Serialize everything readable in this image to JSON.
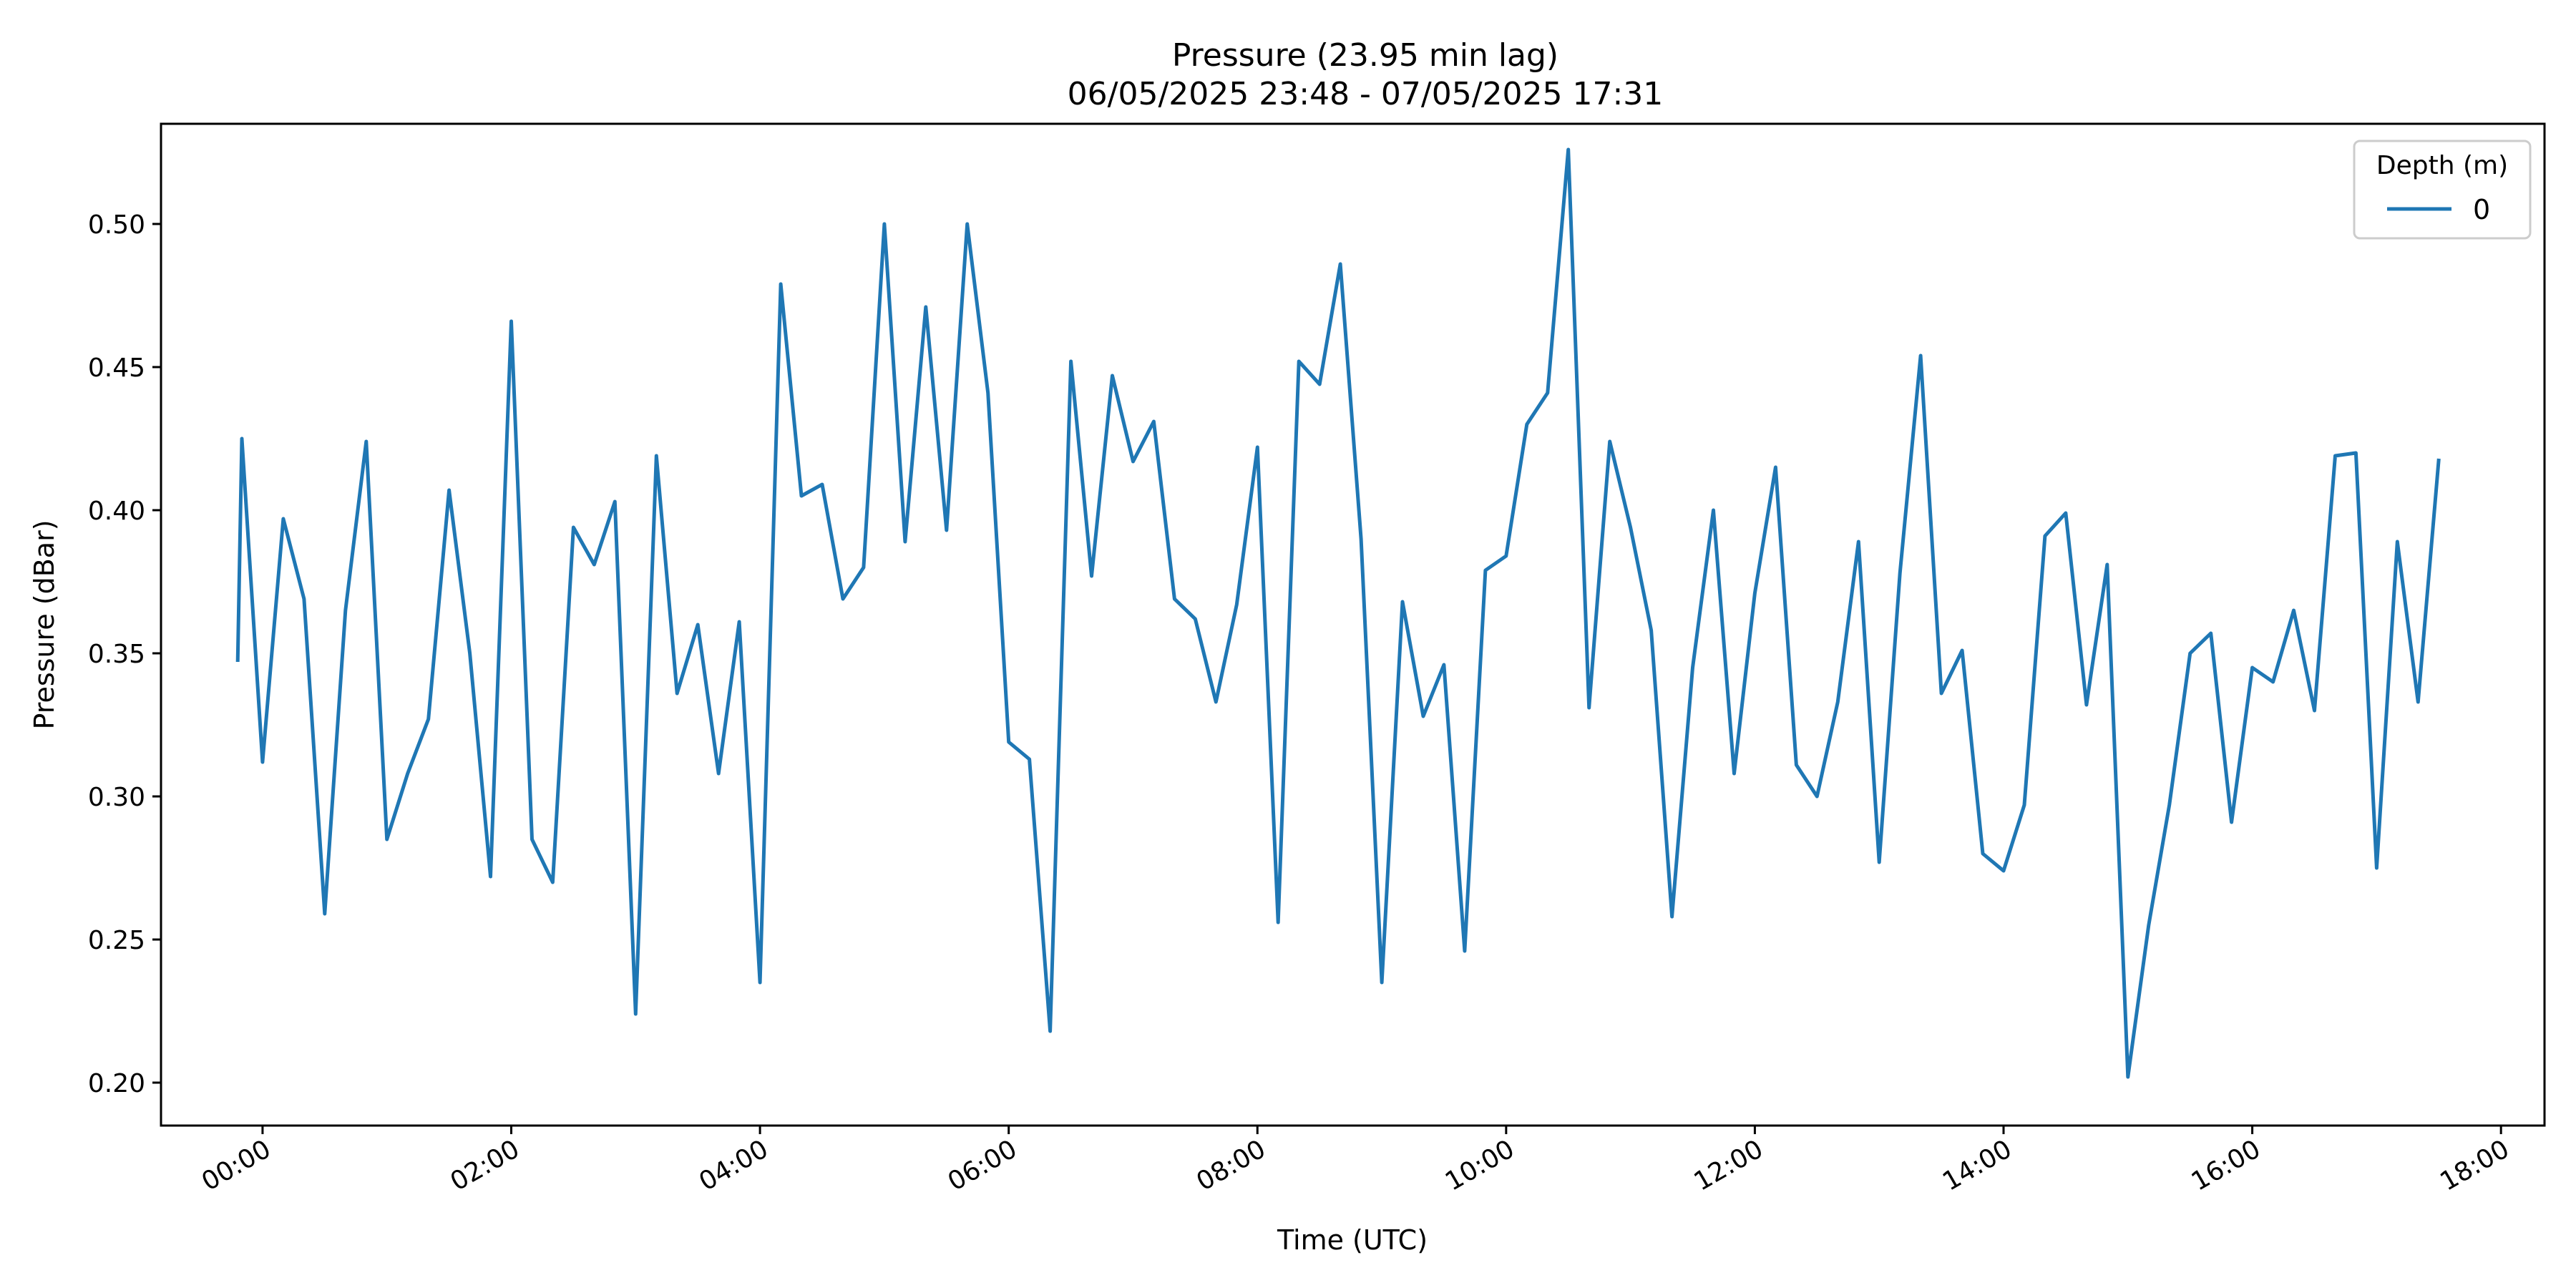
{
  "chart_data": {
    "type": "line",
    "title": "Pressure (23.95 min lag)",
    "subtitle": "06/05/2025 23:48 - 07/05/2025 17:31",
    "xlabel": "Time (UTC)",
    "ylabel": "Pressure (dBar)",
    "x_ticks": [
      "00:00",
      "02:00",
      "04:00",
      "06:00",
      "08:00",
      "10:00",
      "12:00",
      "14:00",
      "16:00",
      "18:00"
    ],
    "y_ticks": [
      "0.20",
      "0.25",
      "0.30",
      "0.35",
      "0.40",
      "0.45",
      "0.50"
    ],
    "xlim": [
      "06/05/2025 23:11",
      "07/05/2025 18:21"
    ],
    "ylim": [
      0.185,
      0.535
    ],
    "grid": false,
    "legend": {
      "title": "Depth (m)",
      "placement": "top-right"
    },
    "colors": {
      "series": "#1f77b4",
      "axes": "#000000"
    },
    "series": [
      {
        "name": "0",
        "x": [
          "23:48",
          "23:50",
          "24:00",
          "24:10",
          "24:20",
          "24:30",
          "24:40",
          "24:50",
          "25:00",
          "25:10",
          "25:20",
          "25:30",
          "25:40",
          "25:50",
          "26:00",
          "26:10",
          "26:20",
          "26:30",
          "26:40",
          "26:50",
          "27:00",
          "27:10",
          "27:20",
          "27:30",
          "27:40",
          "27:50",
          "28:00",
          "28:10",
          "28:20",
          "28:30",
          "28:40",
          "28:50",
          "29:00",
          "29:10",
          "29:20",
          "29:30",
          "29:40",
          "29:50",
          "30:00",
          "30:10",
          "30:20",
          "30:30",
          "30:40",
          "30:50",
          "31:00",
          "31:10",
          "31:20",
          "31:30",
          "31:40",
          "31:50",
          "32:00",
          "32:10",
          "32:20",
          "32:30",
          "32:40",
          "32:50",
          "33:00",
          "33:10",
          "33:20",
          "33:30",
          "33:40",
          "33:50",
          "34:00",
          "34:10",
          "34:20",
          "34:30",
          "34:40",
          "34:50",
          "35:00",
          "35:10",
          "35:20",
          "35:30",
          "35:40",
          "35:50",
          "36:00",
          "36:10",
          "36:20",
          "36:30",
          "36:40",
          "36:50",
          "37:00",
          "37:10",
          "37:20",
          "37:30",
          "37:40",
          "37:50",
          "38:00",
          "38:10",
          "38:20",
          "38:30",
          "38:40",
          "38:50",
          "39:00",
          "39:10",
          "39:20",
          "39:30",
          "39:40",
          "39:50",
          "40:00",
          "40:10",
          "40:20",
          "40:30",
          "40:40",
          "40:50",
          "41:00",
          "41:10",
          "41:20",
          "41:30"
        ],
        "y": [
          0.347,
          0.425,
          0.312,
          0.397,
          0.369,
          0.259,
          0.365,
          0.424,
          0.285,
          0.308,
          0.327,
          0.407,
          0.35,
          0.272,
          0.466,
          0.285,
          0.27,
          0.394,
          0.381,
          0.403,
          0.224,
          0.419,
          0.336,
          0.36,
          0.308,
          0.361,
          0.235,
          0.479,
          0.405,
          0.409,
          0.369,
          0.38,
          0.5,
          0.389,
          0.471,
          0.393,
          0.5,
          0.441,
          0.319,
          0.313,
          0.218,
          0.452,
          0.377,
          0.447,
          0.417,
          0.431,
          0.369,
          0.362,
          0.333,
          0.367,
          0.422,
          0.256,
          0.452,
          0.444,
          0.486,
          0.39,
          0.235,
          0.368,
          0.328,
          0.346,
          0.246,
          0.379,
          0.384,
          0.43,
          0.441,
          0.526,
          0.331,
          0.424,
          0.394,
          0.358,
          0.258,
          0.345,
          0.4,
          0.308,
          0.371,
          0.415,
          0.311,
          0.3,
          0.333,
          0.389,
          0.277,
          0.378,
          0.454,
          0.336,
          0.351,
          0.28,
          0.274,
          0.297,
          0.391,
          0.399,
          0.332,
          0.381,
          0.202,
          0.255,
          0.297,
          0.35,
          0.357,
          0.291,
          0.345,
          0.34,
          0.365,
          0.33,
          0.419,
          0.42,
          0.275,
          0.389,
          0.333,
          0.418
        ]
      }
    ]
  }
}
